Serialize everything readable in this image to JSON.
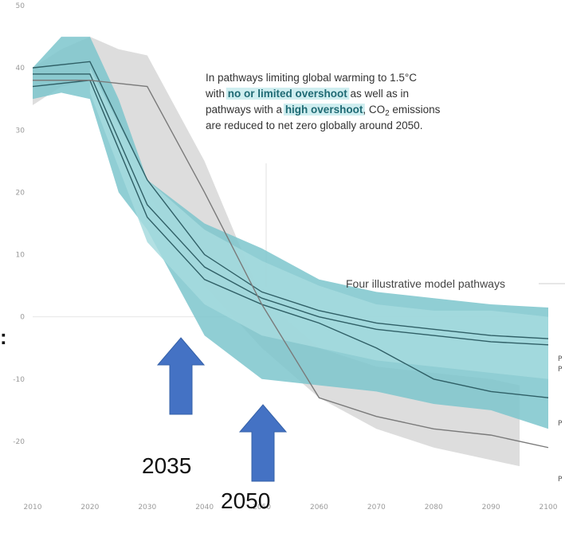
{
  "chart_data": {
    "type": "area",
    "xlim": [
      2010,
      2100
    ],
    "ylim": [
      -25,
      50
    ],
    "x_ticks": [
      "2010",
      "2020",
      "2030",
      "2040",
      "2050",
      "2060",
      "2070",
      "2080",
      "2090",
      "2100"
    ],
    "y_ticks": [
      "50",
      "40",
      "30",
      "20",
      "10",
      "0",
      "-10",
      "-20"
    ],
    "bands": [
      {
        "color": "#d9d9d9",
        "x": [
          2010,
          2015,
          2020,
          2025,
          2030,
          2040,
          2050,
          2060,
          2070,
          2080,
          2090,
          2095
        ],
        "upper": [
          40,
          43,
          45,
          43,
          42,
          25,
          3,
          -5,
          -8,
          -9,
          -10,
          -11
        ],
        "lower": [
          34,
          37,
          38,
          30,
          20,
          5,
          -5,
          -13,
          -18,
          -21,
          -23,
          -24
        ]
      },
      {
        "color": "#7cc6cd",
        "x": [
          2010,
          2015,
          2020,
          2025,
          2030,
          2040,
          2050,
          2060,
          2070,
          2080,
          2090,
          2100
        ],
        "upper": [
          40,
          45,
          45,
          35,
          22,
          15,
          11,
          6,
          4,
          3,
          2,
          1.5
        ],
        "lower": [
          35,
          36,
          35,
          20,
          14,
          -3,
          -10,
          -11,
          -12,
          -14,
          -15,
          -18
        ]
      },
      {
        "color": "#a6dade",
        "x": [
          2020,
          2030,
          2040,
          2050,
          2060,
          2070,
          2080,
          2090,
          2100
        ],
        "upper": [
          40,
          22,
          14,
          9,
          5,
          2,
          1,
          1,
          0
        ],
        "lower": [
          36,
          12,
          2,
          -3,
          -5,
          -7,
          -8,
          -9,
          -10
        ]
      }
    ],
    "series": [
      {
        "x": [
          2010,
          2020,
          2030,
          2040,
          2050,
          2060,
          2070,
          2080,
          2090,
          2100
        ],
        "values": [
          40,
          41,
          22,
          10,
          4,
          1,
          -1,
          -2,
          -3,
          -3.5
        ]
      },
      {
        "x": [
          2010,
          2020,
          2030,
          2040,
          2050,
          2060,
          2070,
          2080,
          2090,
          2100
        ],
        "values": [
          39,
          39,
          18,
          8,
          3,
          0,
          -2,
          -3,
          -4,
          -4.5
        ]
      },
      {
        "x": [
          2010,
          2020,
          2030,
          2040,
          2050,
          2060,
          2070,
          2080,
          2090,
          2100
        ],
        "values": [
          37,
          38,
          16,
          6,
          2,
          -1,
          -5,
          -10,
          -12,
          -13
        ]
      },
      {
        "x": [
          2010,
          2020,
          2030,
          2040,
          2050,
          2060,
          2070,
          2080,
          2090,
          2100
        ],
        "values": [
          38,
          38,
          37,
          20,
          2,
          -13,
          -16,
          -18,
          -19,
          -21
        ]
      }
    ],
    "end_labels": [
      "P",
      "P",
      "P",
      "P"
    ],
    "annotation": {
      "lines": [
        [
          {
            "t": "In pathways limiting global warming to 1.5°C"
          }
        ],
        [
          {
            "t": "with "
          },
          {
            "t": "no or limited overshoot",
            "b": true
          },
          {
            "t": " as well as in"
          }
        ],
        [
          {
            "t": "pathways with a "
          },
          {
            "t": "high overshoot",
            "b": true
          },
          {
            "t": ", CO"
          },
          {
            "t": "2",
            "sub": true
          },
          {
            "t": " emissions"
          }
        ],
        [
          {
            "t": "are reduced to net zero globally around 2050."
          }
        ]
      ]
    },
    "callout": "Four illustrative model pathways",
    "markers": [
      {
        "label": "2035",
        "color": "#4472c4"
      },
      {
        "label": "2050",
        "color": "#4472c4"
      }
    ]
  }
}
